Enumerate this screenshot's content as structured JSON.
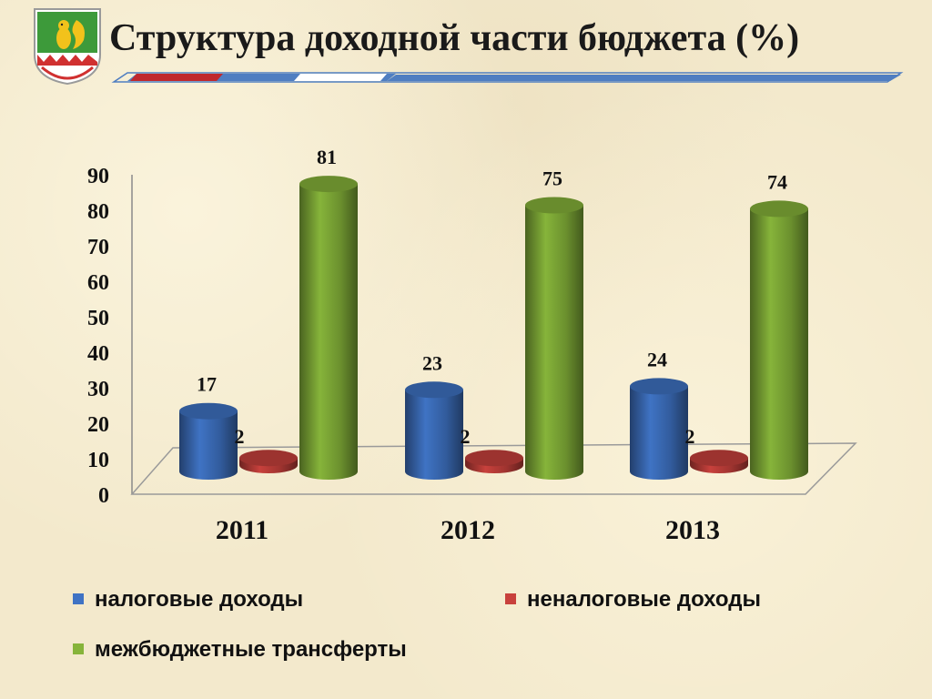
{
  "title": "Структура доходной части бюджета (%)",
  "colors": {
    "title_bar_blue": "#4f7ec1",
    "title_bar_red": "#c0282d",
    "series": [
      "#3f73c4",
      "#c8413c",
      "#86b43a"
    ]
  },
  "emblem": {
    "icon": "squirrel-coat-of-arms-icon"
  },
  "chart_data": {
    "type": "bar",
    "style": "3d-cylinder",
    "categories": [
      "2011",
      "2012",
      "2013"
    ],
    "series": [
      {
        "name": "налоговые доходы",
        "values": [
          17,
          23,
          24
        ],
        "color": "#3f73c4"
      },
      {
        "name": "неналоговые доходы",
        "values": [
          2,
          2,
          2
        ],
        "color": "#c8413c"
      },
      {
        "name": "межбюджетные трансферты",
        "values": [
          81,
          75,
          74
        ],
        "color": "#86b43a"
      }
    ],
    "ylim": [
      0,
      90
    ],
    "yticks": [
      "0",
      "10",
      "20",
      "30",
      "40",
      "50",
      "60",
      "70",
      "80",
      "90"
    ],
    "data_labels": true,
    "legend_position": "bottom",
    "grid": false
  }
}
